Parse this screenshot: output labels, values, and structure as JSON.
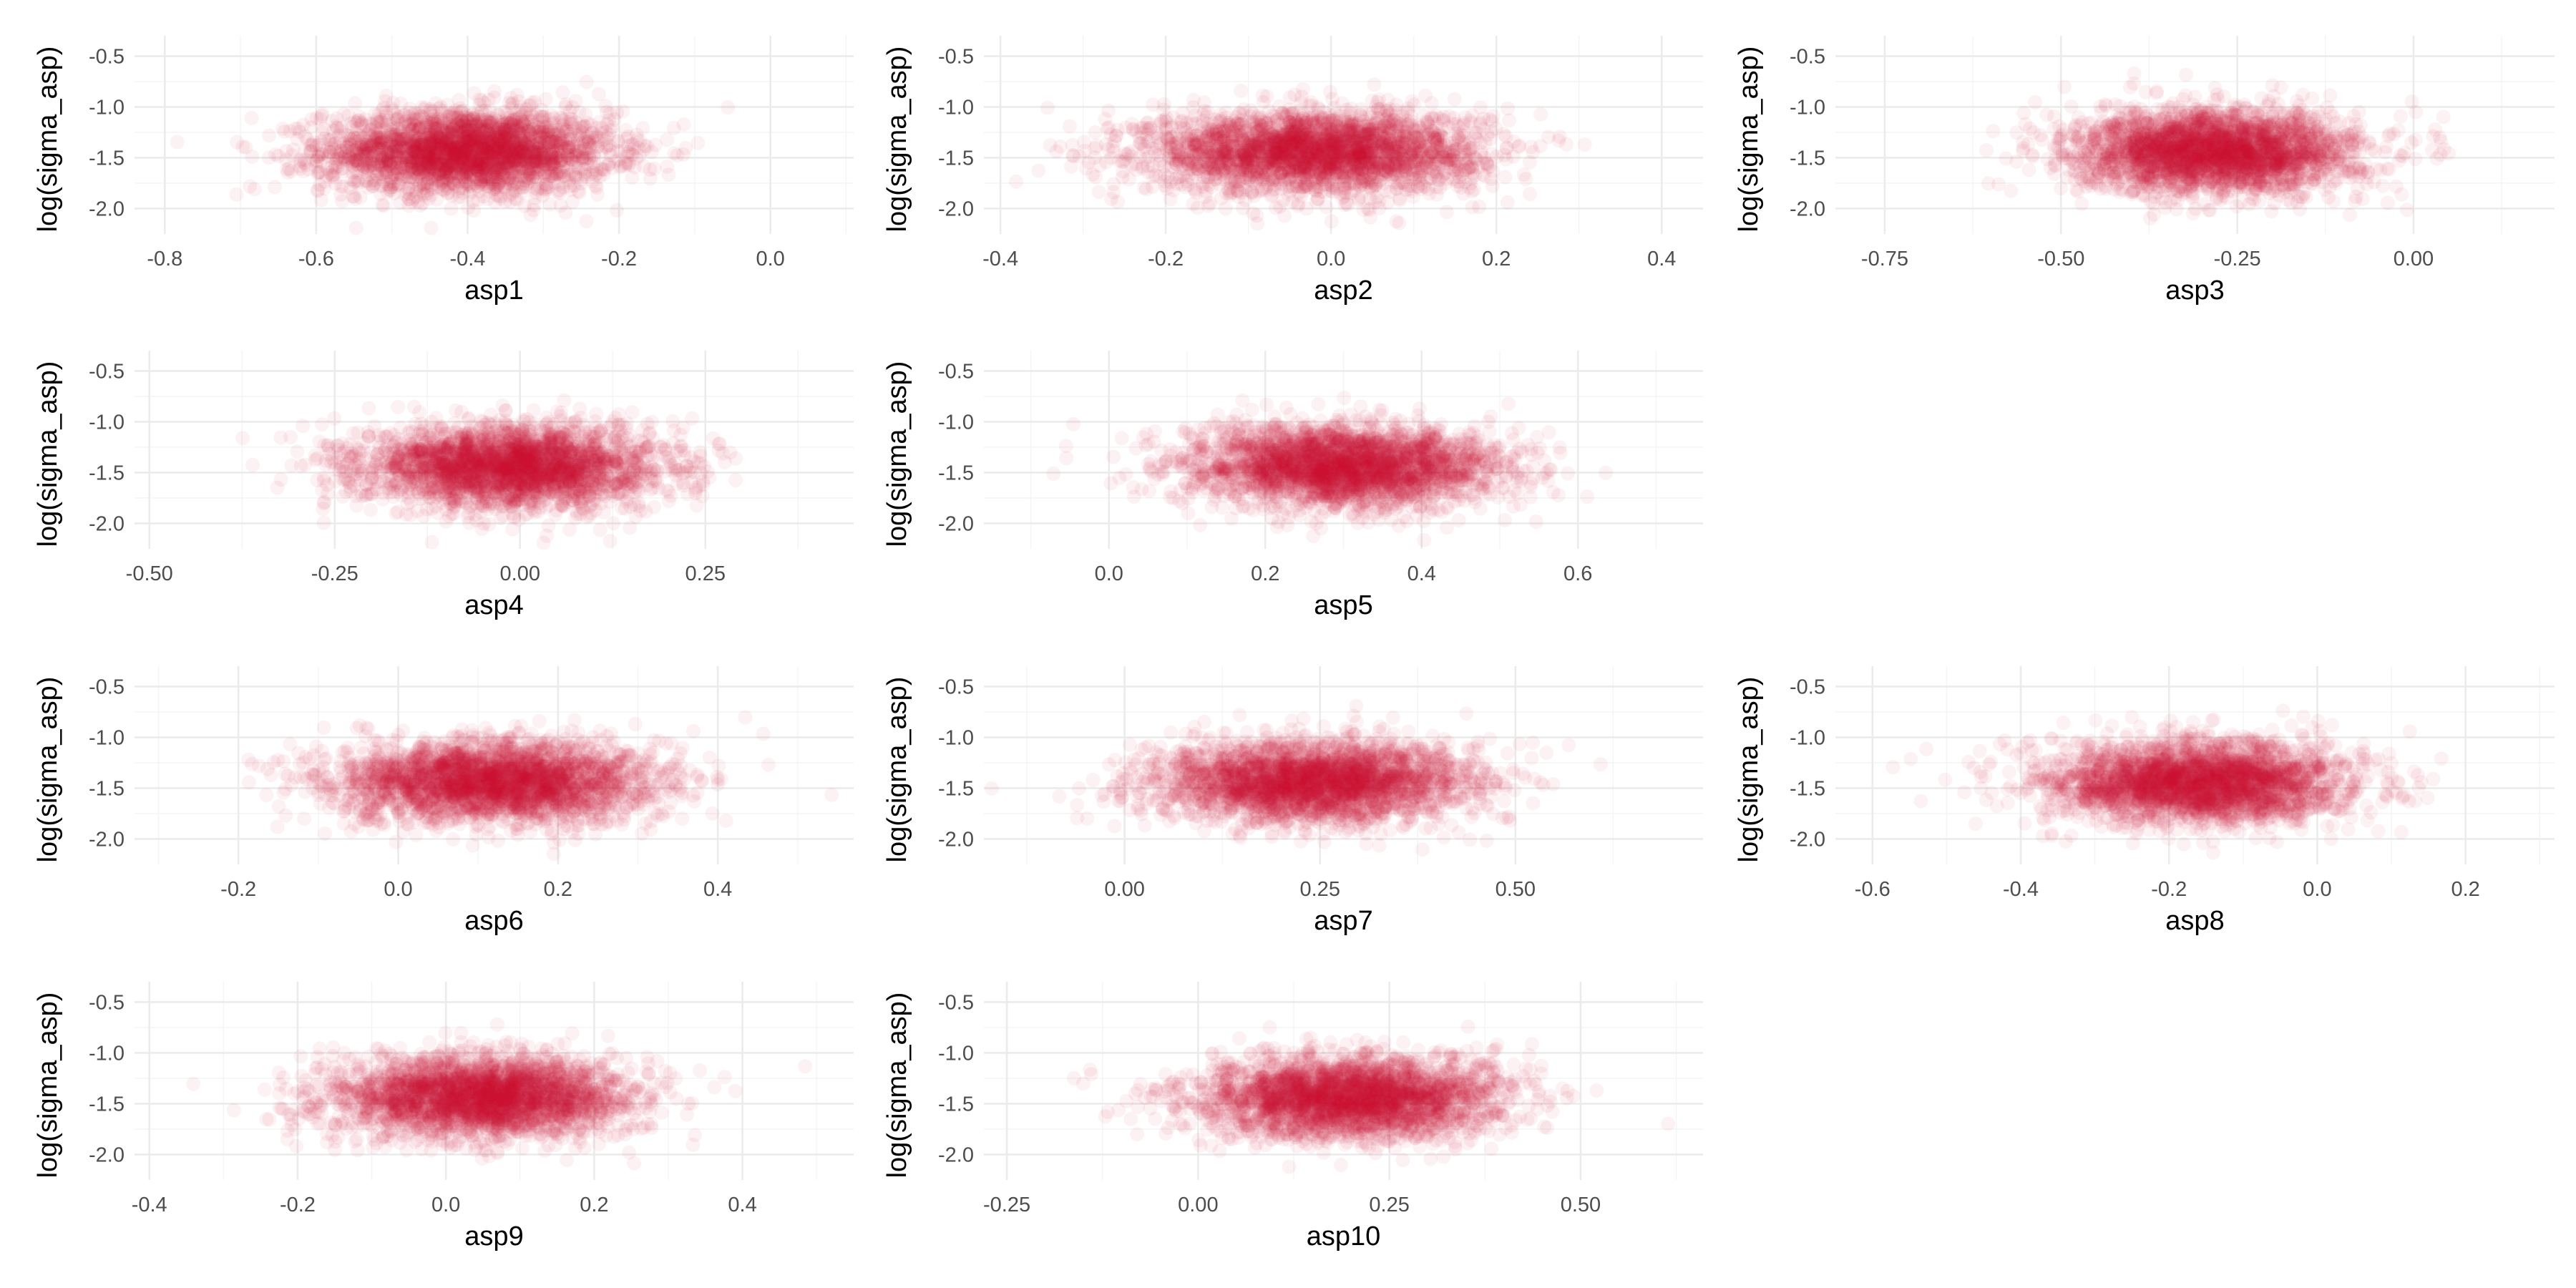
{
  "figure": {
    "point_color": "#c8102e",
    "layout": "scatter-matrix-like grid of 10 scatter panels, 4 rows x 3 columns, row 2 and row 4 have 2 panels"
  },
  "chart_data": [
    {
      "type": "scatter",
      "xlabel": "asp1",
      "ylabel": "log(sigma_asp)",
      "xlim": [
        -0.84,
        0.11
      ],
      "ylim": [
        -2.25,
        -0.3
      ],
      "xticks": [
        -0.8,
        -0.6,
        -0.4,
        -0.2,
        0.0
      ],
      "xtick_labels": [
        "-0.8",
        "-0.6",
        "-0.4",
        "-0.2",
        "0.0"
      ],
      "yticks": [
        -2.0,
        -1.5,
        -1.0,
        -0.5
      ],
      "ytick_labels": [
        "-2.0",
        "-1.5",
        "-1.0",
        "-0.5"
      ],
      "cloud": {
        "x_mean": -0.4,
        "x_sd": 0.095,
        "y_mean": -1.44,
        "y_sd": 0.2,
        "n": 3000,
        "alpha": 0.06
      }
    },
    {
      "type": "scatter",
      "xlabel": "asp2",
      "ylabel": "log(sigma_asp)",
      "xlim": [
        -0.42,
        0.45
      ],
      "ylim": [
        -2.25,
        -0.3
      ],
      "xticks": [
        -0.4,
        -0.2,
        0.0,
        0.2,
        0.4
      ],
      "xtick_labels": [
        "-0.4",
        "-0.2",
        "0.0",
        "0.2",
        "0.4"
      ],
      "yticks": [
        -2.0,
        -1.5,
        -1.0,
        -0.5
      ],
      "ytick_labels": [
        "-2.0",
        "-1.5",
        "-1.0",
        "-0.5"
      ],
      "cloud": {
        "x_mean": -0.02,
        "x_sd": 0.1,
        "y_mean": -1.44,
        "y_sd": 0.2,
        "n": 3000,
        "alpha": 0.06
      }
    },
    {
      "type": "scatter",
      "xlabel": "asp3",
      "ylabel": "log(sigma_asp)",
      "xlim": [
        -0.82,
        0.2
      ],
      "ylim": [
        -2.25,
        -0.3
      ],
      "xticks": [
        -0.75,
        -0.5,
        -0.25,
        0.0
      ],
      "xtick_labels": [
        "-0.75",
        "-0.50",
        "-0.25",
        "0.00"
      ],
      "yticks": [
        -2.0,
        -1.5,
        -1.0,
        -0.5
      ],
      "ytick_labels": [
        "-2.0",
        "-1.5",
        "-1.0",
        "-0.5"
      ],
      "cloud": {
        "x_mean": -0.28,
        "x_sd": 0.1,
        "y_mean": -1.44,
        "y_sd": 0.2,
        "n": 3000,
        "alpha": 0.06
      }
    },
    {
      "type": "scatter",
      "xlabel": "asp4",
      "ylabel": "log(sigma_asp)",
      "xlim": [
        -0.52,
        0.45
      ],
      "ylim": [
        -2.25,
        -0.3
      ],
      "xticks": [
        -0.5,
        -0.25,
        0.0,
        0.25
      ],
      "xtick_labels": [
        "-0.50",
        "-0.25",
        "0.00",
        "0.25"
      ],
      "yticks": [
        -2.0,
        -1.5,
        -1.0,
        -0.5
      ],
      "ytick_labels": [
        "-2.0",
        "-1.5",
        "-1.0",
        "-0.5"
      ],
      "cloud": {
        "x_mean": -0.01,
        "x_sd": 0.1,
        "y_mean": -1.44,
        "y_sd": 0.2,
        "n": 3000,
        "alpha": 0.06
      }
    },
    {
      "type": "scatter",
      "xlabel": "asp5",
      "ylabel": "log(sigma_asp)",
      "xlim": [
        -0.16,
        0.76
      ],
      "ylim": [
        -2.25,
        -0.3
      ],
      "xticks": [
        0.0,
        0.2,
        0.4,
        0.6
      ],
      "xtick_labels": [
        "0.0",
        "0.2",
        "0.4",
        "0.6"
      ],
      "yticks": [
        -2.0,
        -1.5,
        -1.0,
        -0.5
      ],
      "ytick_labels": [
        "-2.0",
        "-1.5",
        "-1.0",
        "-0.5"
      ],
      "cloud": {
        "x_mean": 0.3,
        "x_sd": 0.1,
        "y_mean": -1.44,
        "y_sd": 0.2,
        "n": 3000,
        "alpha": 0.06
      }
    },
    {
      "type": "scatter",
      "xlabel": "asp6",
      "ylabel": "log(sigma_asp)",
      "xlim": [
        -0.33,
        0.57
      ],
      "ylim": [
        -2.25,
        -0.3
      ],
      "xticks": [
        -0.2,
        0.0,
        0.2,
        0.4
      ],
      "xtick_labels": [
        "-0.2",
        "0.0",
        "0.2",
        "0.4"
      ],
      "yticks": [
        -2.0,
        -1.5,
        -1.0,
        -0.5
      ],
      "ytick_labels": [
        "-2.0",
        "-1.5",
        "-1.0",
        "-0.5"
      ],
      "cloud": {
        "x_mean": 0.12,
        "x_sd": 0.1,
        "y_mean": -1.44,
        "y_sd": 0.2,
        "n": 3000,
        "alpha": 0.06
      }
    },
    {
      "type": "scatter",
      "xlabel": "asp7",
      "ylabel": "log(sigma_asp)",
      "xlim": [
        -0.18,
        0.74
      ],
      "ylim": [
        -2.25,
        -0.3
      ],
      "xticks": [
        0.0,
        0.25,
        0.5
      ],
      "xtick_labels": [
        "0.00",
        "0.25",
        "0.50"
      ],
      "yticks": [
        -2.0,
        -1.5,
        -1.0,
        -0.5
      ],
      "ytick_labels": [
        "-2.0",
        "-1.5",
        "-1.0",
        "-0.5"
      ],
      "cloud": {
        "x_mean": 0.24,
        "x_sd": 0.1,
        "y_mean": -1.44,
        "y_sd": 0.2,
        "n": 3000,
        "alpha": 0.06
      }
    },
    {
      "type": "scatter",
      "xlabel": "asp8",
      "ylabel": "log(sigma_asp)",
      "xlim": [
        -0.65,
        0.32
      ],
      "ylim": [
        -2.25,
        -0.3
      ],
      "xticks": [
        -0.6,
        -0.4,
        -0.2,
        0.0,
        0.2
      ],
      "xtick_labels": [
        "-0.6",
        "-0.4",
        "-0.2",
        "0.0",
        "0.2"
      ],
      "yticks": [
        -2.0,
        -1.5,
        -1.0,
        -0.5
      ],
      "ytick_labels": [
        "-2.0",
        "-1.5",
        "-1.0",
        "-0.5"
      ],
      "cloud": {
        "x_mean": -0.16,
        "x_sd": 0.1,
        "y_mean": -1.44,
        "y_sd": 0.2,
        "n": 3000,
        "alpha": 0.06
      }
    },
    {
      "type": "scatter",
      "xlabel": "asp9",
      "ylabel": "log(sigma_asp)",
      "xlim": [
        -0.42,
        0.55
      ],
      "ylim": [
        -2.25,
        -0.3
      ],
      "xticks": [
        -0.4,
        -0.2,
        0.0,
        0.2,
        0.4
      ],
      "xtick_labels": [
        "-0.4",
        "-0.2",
        "0.0",
        "0.2",
        "0.4"
      ],
      "yticks": [
        -2.0,
        -1.5,
        -1.0,
        -0.5
      ],
      "ytick_labels": [
        "-2.0",
        "-1.5",
        "-1.0",
        "-0.5"
      ],
      "cloud": {
        "x_mean": 0.05,
        "x_sd": 0.1,
        "y_mean": -1.44,
        "y_sd": 0.2,
        "n": 3000,
        "alpha": 0.06
      }
    },
    {
      "type": "scatter",
      "xlabel": "asp10",
      "ylabel": "log(sigma_asp)",
      "xlim": [
        -0.28,
        0.66
      ],
      "ylim": [
        -2.25,
        -0.3
      ],
      "xticks": [
        -0.25,
        0.0,
        0.25,
        0.5
      ],
      "xtick_labels": [
        "-0.25",
        "0.00",
        "0.25",
        "0.50"
      ],
      "yticks": [
        -2.0,
        -1.5,
        -1.0,
        -0.5
      ],
      "ytick_labels": [
        "-2.0",
        "-1.5",
        "-1.0",
        "-0.5"
      ],
      "cloud": {
        "x_mean": 0.2,
        "x_sd": 0.1,
        "y_mean": -1.44,
        "y_sd": 0.2,
        "n": 3000,
        "alpha": 0.06
      }
    }
  ]
}
